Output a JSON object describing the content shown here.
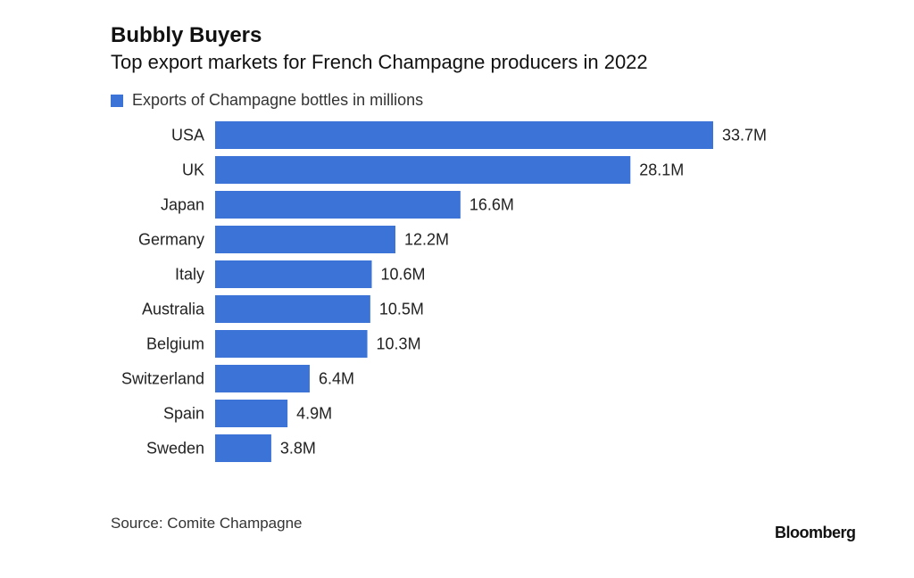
{
  "chart_data": {
    "type": "bar",
    "orientation": "horizontal",
    "title": "Bubbly Buyers",
    "subtitle": "Top export markets for French Champagne producers in 2022",
    "legend": [
      "Exports of Champagne bottles in millions"
    ],
    "categories": [
      "USA",
      "UK",
      "Japan",
      "Germany",
      "Italy",
      "Australia",
      "Belgium",
      "Switzerland",
      "Spain",
      "Sweden"
    ],
    "values": [
      33.7,
      28.1,
      16.6,
      12.2,
      10.6,
      10.5,
      10.3,
      6.4,
      4.9,
      3.8
    ],
    "data_labels": [
      "33.7M",
      "28.1M",
      "16.6M",
      "12.2M",
      "10.6M",
      "10.5M",
      "10.3M",
      "6.4M",
      "4.9M",
      "3.8M"
    ],
    "xlabel": "",
    "ylabel": "",
    "grid": false,
    "color": "#3b74d6"
  },
  "source": "Source: Comite Champagne",
  "logo": "Bloomberg"
}
